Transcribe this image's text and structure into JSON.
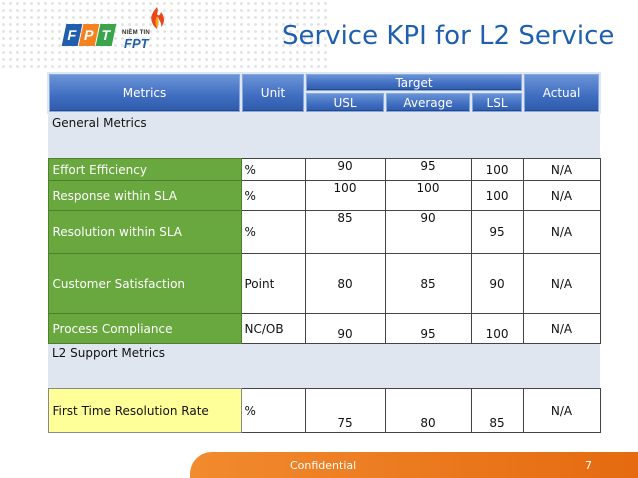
{
  "logos": {
    "fpt_letters": [
      "F",
      "P",
      "T"
    ],
    "niem_tin": "NIỀM TIN",
    "niem_fpt": "FPT"
  },
  "slide": {
    "title": "Service KPI for L2 Service",
    "footer": "Confidential",
    "page_number": "7"
  },
  "table": {
    "headers": {
      "metrics": "Metrics",
      "unit": "Unit",
      "target": "Target",
      "usl": "USL",
      "average": "Average",
      "lsl": "LSL",
      "actual": "Actual"
    },
    "sections": [
      {
        "title": "General  Metrics",
        "rows": [
          {
            "metric": "Effort Efficiency",
            "unit": "%",
            "usl": "90",
            "average": "95",
            "lsl": "100",
            "actual": "N/A"
          },
          {
            "metric": "Response within SLA",
            "unit": "%",
            "usl": "100",
            "average": "100",
            "lsl": "100",
            "actual": "N/A"
          },
          {
            "metric": "Resolution within SLA",
            "unit": "%",
            "usl": "85",
            "average": "90",
            "lsl": "95",
            "actual": "N/A"
          },
          {
            "metric": "Customer Satisfaction",
            "unit": "Point",
            "usl": "80",
            "average": "85",
            "lsl": "90",
            "actual": "N/A"
          },
          {
            "metric": "Process Compliance",
            "unit": "NC/OB",
            "usl": "90",
            "average": "95",
            "lsl": "100",
            "actual": "N/A"
          }
        ]
      },
      {
        "title": "L2  Support Metrics",
        "rows": [
          {
            "metric": "First Time Resolution Rate",
            "unit": "%",
            "usl": "75",
            "average": "80",
            "lsl": "85",
            "actual": "N/A"
          }
        ]
      }
    ]
  },
  "colors": {
    "title": "#1f5fae",
    "header_blue": "#3e6cbf",
    "metric_green": "#69a83f",
    "metric_yellow": "#ffff99",
    "footer_orange": "#f28a2e"
  }
}
